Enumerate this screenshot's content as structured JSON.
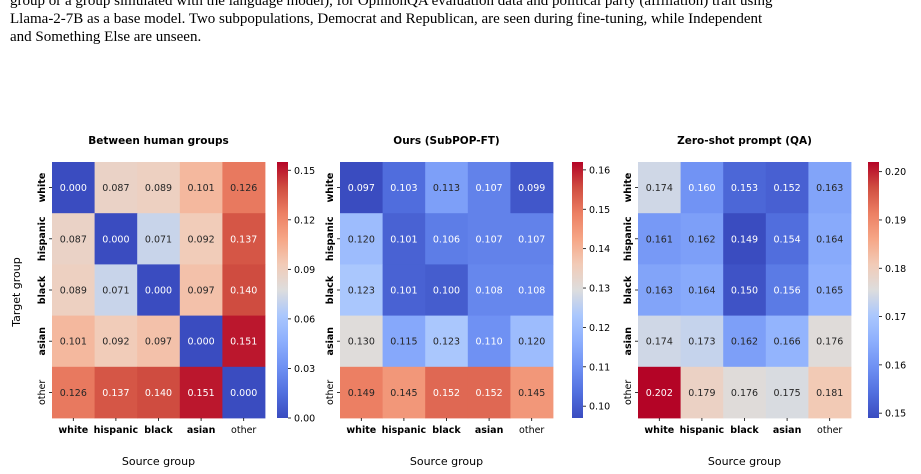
{
  "caption": {
    "lines": [
      "group or a group simulated with the language model), for OpinionQA evaluation data and political party (affiliation) trait using",
      "Llama-2-7B as a base model. Two subpopulations, Democrat and Republican, are seen during fine-tuning, while Independent",
      "and Something Else are unseen."
    ]
  },
  "figure": {
    "shared_ylabel": "Target group"
  },
  "chart_data": [
    {
      "type": "heatmap",
      "title": "Between human groups",
      "xlabel": "Source group",
      "ylabel": "Target group",
      "x_categories": [
        "white",
        "hispanic",
        "black",
        "asian",
        "other"
      ],
      "y_categories": [
        "white",
        "hispanic",
        "black",
        "asian",
        "other"
      ],
      "bold_x": [
        true,
        true,
        true,
        true,
        false
      ],
      "bold_y": [
        true,
        true,
        true,
        true,
        false
      ],
      "values": [
        [
          0.0,
          0.087,
          0.089,
          0.101,
          0.126
        ],
        [
          0.087,
          0.0,
          0.071,
          0.092,
          0.137
        ],
        [
          0.089,
          0.071,
          0.0,
          0.097,
          0.14
        ],
        [
          0.101,
          0.092,
          0.097,
          0.0,
          0.151
        ],
        [
          0.126,
          0.137,
          0.14,
          0.151,
          0.0
        ]
      ],
      "colormap": "coolwarm",
      "vmin": 0.0,
      "vmax": 0.155,
      "colorbar_ticks": [
        "0.00",
        "0.03",
        "0.06",
        "0.09",
        "0.12",
        "0.15"
      ],
      "colorbar_tick_values": [
        0.0,
        0.03,
        0.06,
        0.09,
        0.12,
        0.15
      ]
    },
    {
      "type": "heatmap",
      "title": "Ours (SubPOP-FT)",
      "xlabel": "Source group",
      "ylabel": "",
      "x_categories": [
        "white",
        "hispanic",
        "black",
        "asian",
        "other"
      ],
      "y_categories": [
        "white",
        "hispanic",
        "black",
        "asian",
        "other"
      ],
      "bold_x": [
        true,
        true,
        true,
        true,
        false
      ],
      "bold_y": [
        true,
        true,
        true,
        true,
        false
      ],
      "values": [
        [
          0.097,
          0.103,
          0.113,
          0.107,
          0.099
        ],
        [
          0.12,
          0.101,
          0.106,
          0.107,
          0.107
        ],
        [
          0.123,
          0.101,
          0.1,
          0.108,
          0.108
        ],
        [
          0.13,
          0.115,
          0.123,
          0.11,
          0.12
        ],
        [
          0.149,
          0.145,
          0.152,
          0.152,
          0.145
        ]
      ],
      "colormap": "coolwarm",
      "vmin": 0.097,
      "vmax": 0.162,
      "colorbar_ticks": [
        "0.10",
        "0.11",
        "0.12",
        "0.13",
        "0.14",
        "0.15",
        "0.16"
      ],
      "colorbar_tick_values": [
        0.1,
        0.11,
        0.12,
        0.13,
        0.14,
        0.15,
        0.16
      ]
    },
    {
      "type": "heatmap",
      "title": "Zero-shot prompt (QA)",
      "xlabel": "Source group",
      "ylabel": "",
      "x_categories": [
        "white",
        "hispanic",
        "black",
        "asian",
        "other"
      ],
      "y_categories": [
        "white",
        "hispanic",
        "black",
        "asian",
        "other"
      ],
      "bold_x": [
        true,
        true,
        true,
        true,
        false
      ],
      "bold_y": [
        true,
        true,
        true,
        true,
        false
      ],
      "values": [
        [
          0.174,
          0.16,
          0.153,
          0.152,
          0.163
        ],
        [
          0.161,
          0.162,
          0.149,
          0.154,
          0.164
        ],
        [
          0.163,
          0.164,
          0.15,
          0.156,
          0.165
        ],
        [
          0.174,
          0.173,
          0.162,
          0.166,
          0.176
        ],
        [
          0.202,
          0.179,
          0.176,
          0.175,
          0.181
        ]
      ],
      "colormap": "coolwarm",
      "vmin": 0.149,
      "vmax": 0.202,
      "colorbar_ticks": [
        "0.15",
        "0.16",
        "0.17",
        "0.18",
        "0.19",
        "0.20"
      ],
      "colorbar_tick_values": [
        0.15,
        0.16,
        0.17,
        0.18,
        0.19,
        0.2
      ]
    }
  ]
}
